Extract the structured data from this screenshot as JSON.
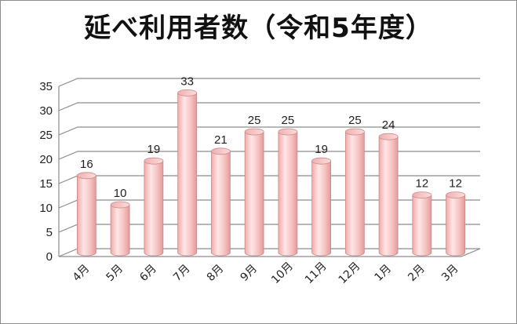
{
  "chart_data": {
    "type": "bar",
    "title": "延べ利用者数（令和5年度）",
    "categories": [
      "4月",
      "5月",
      "6月",
      "7月",
      "8月",
      "9月",
      "10月",
      "11月",
      "12月",
      "1月",
      "2月",
      "3月"
    ],
    "values": [
      16,
      10,
      19,
      33,
      21,
      25,
      25,
      19,
      25,
      24,
      12,
      12
    ],
    "ylim": [
      0,
      35
    ],
    "yticks": [
      0,
      5,
      10,
      15,
      20,
      25,
      30,
      35
    ],
    "xlabel": "",
    "ylabel": "",
    "grid": true,
    "style": "3d-cylinder",
    "bar_color": "#f4b8b8",
    "bar_edge_color": "#c98a8a",
    "grid_color": "#8c8c8c"
  }
}
